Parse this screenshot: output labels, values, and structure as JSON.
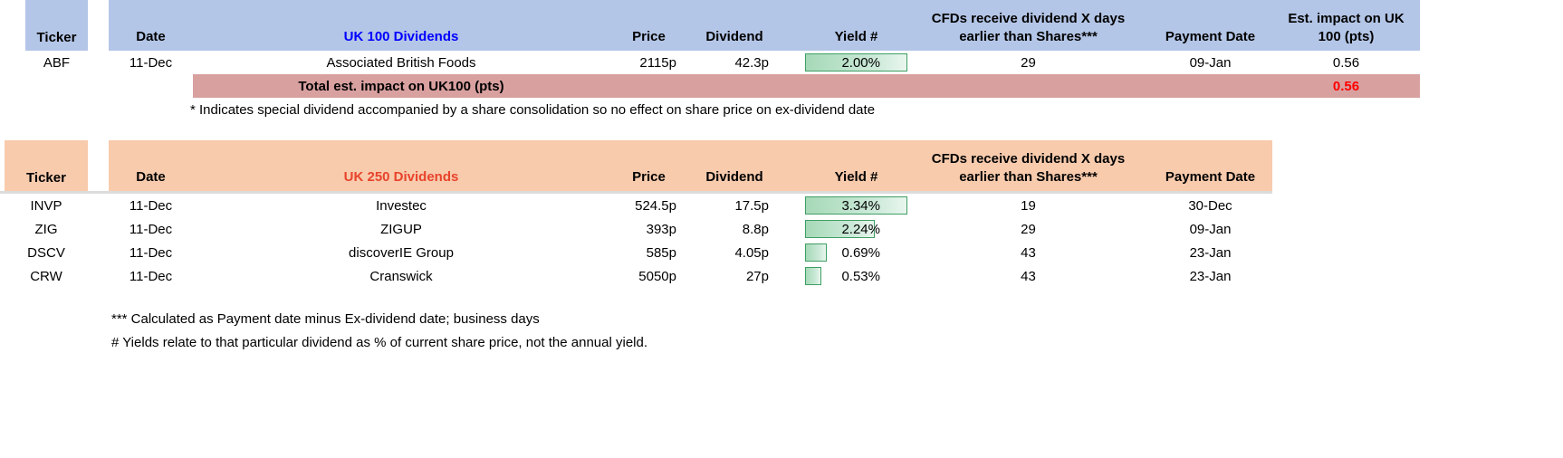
{
  "colors": {
    "uk100_header_bg": "#b4c6e7",
    "uk250_header_bg": "#f8cbad",
    "total_row_bg": "#d9a0a0",
    "uk100_title_color": "#0000ff",
    "uk250_title_color": "#e8432c",
    "total_value_color": "#ff0000",
    "databar_fill": "#a6d9b7",
    "databar_border": "#3f9e63"
  },
  "uk100": {
    "headers": {
      "ticker": "Ticker",
      "date": "Date",
      "name": "UK 100 Dividends",
      "price": "Price",
      "dividend": "Dividend",
      "yield": "Yield #",
      "cfd_line1": "CFDs receive dividend X days",
      "cfd_line2": "earlier than Shares***",
      "payment": "Payment Date",
      "impact_line1": "Est. impact on UK",
      "impact_line2": "100 (pts)"
    },
    "rows": [
      {
        "ticker": "ABF",
        "date": "11-Dec",
        "name": "Associated British Foods",
        "price": "2115p",
        "dividend": "42.3p",
        "yield": "2.00%",
        "yield_value": 2.0,
        "days": "29",
        "payment": "09-Jan",
        "impact": "0.56"
      }
    ],
    "total_label": "Total est. impact on UK100 (pts)",
    "total_value": "0.56",
    "note": "* Indicates special dividend accompanied by a share consolidation so no effect on share price on ex-dividend date"
  },
  "uk250": {
    "headers": {
      "ticker": "Ticker",
      "date": "Date",
      "name": "UK 250 Dividends",
      "price": "Price",
      "dividend": "Dividend",
      "yield": "Yield #",
      "cfd_line1": "CFDs receive dividend X days",
      "cfd_line2": "earlier than Shares***",
      "payment": "Payment Date"
    },
    "rows": [
      {
        "ticker": "INVP",
        "date": "11-Dec",
        "name": "Investec",
        "price": "524.5p",
        "dividend": "17.5p",
        "yield": "3.34%",
        "yield_value": 3.34,
        "days": "19",
        "payment": "30-Dec"
      },
      {
        "ticker": "ZIG",
        "date": "11-Dec",
        "name": "ZIGUP",
        "price": "393p",
        "dividend": "8.8p",
        "yield": "2.24%",
        "yield_value": 2.24,
        "days": "29",
        "payment": "09-Jan"
      },
      {
        "ticker": "DSCV",
        "date": "11-Dec",
        "name": "discoverIE Group",
        "price": "585p",
        "dividend": "4.05p",
        "yield": "0.69%",
        "yield_value": 0.69,
        "days": "43",
        "payment": "23-Jan"
      },
      {
        "ticker": "CRW",
        "date": "11-Dec",
        "name": "Cranswick",
        "price": "5050p",
        "dividend": "27p",
        "yield": "0.53%",
        "yield_value": 0.53,
        "days": "43",
        "payment": "23-Jan"
      }
    ]
  },
  "footnotes": [
    "*** Calculated as Payment date minus Ex-dividend date; business days",
    "# Yields relate to that particular dividend as % of current share price, not the annual yield."
  ]
}
